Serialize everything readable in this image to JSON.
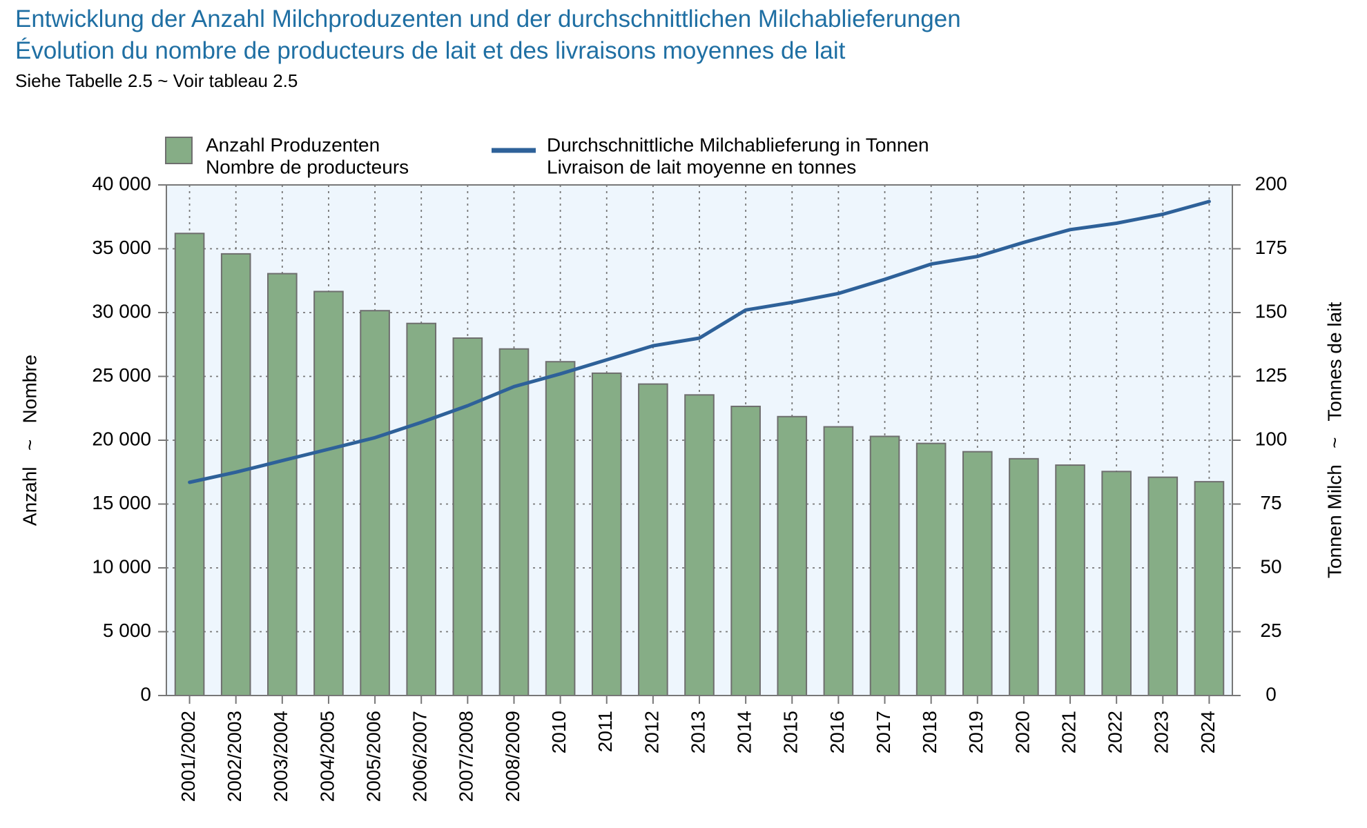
{
  "header": {
    "title_de": "Entwicklung der Anzahl Milchproduzenten und der durchschnittlichen Milchablieferungen",
    "title_fr": "Évolution du nombre de producteurs de lait et des livraisons moyennes de lait",
    "subtitle": "Siehe Tabelle 2.5   ~   Voir tableau 2.5"
  },
  "chart_data": {
    "type": "bar",
    "categories": [
      "2001/2002",
      "2002/2003",
      "2003/2004",
      "2004/2005",
      "2005/2006",
      "2006/2007",
      "2007/2008",
      "2008/2009",
      "2010",
      "2011",
      "2012",
      "2013",
      "2014",
      "2015",
      "2016",
      "2017",
      "2018",
      "2019",
      "2020",
      "2021",
      "2022",
      "2023",
      "2024"
    ],
    "series": [
      {
        "name_de": "Anzahl Produzenten",
        "name_fr": "Nombre de producteurs",
        "type": "bar",
        "axis": "left",
        "color": "#86ad86",
        "values": [
          36200,
          34600,
          33050,
          31650,
          30150,
          29150,
          28000,
          27150,
          26150,
          25250,
          24400,
          23550,
          22650,
          21850,
          21050,
          20300,
          19750,
          19100,
          18550,
          18050,
          17550,
          17100,
          16750
        ]
      },
      {
        "name_de": "Durchschnittliche Milchablieferung in Tonnen",
        "name_fr": "Livraison de lait moyenne en tonnes",
        "type": "line",
        "axis": "right",
        "color": "#2e6199",
        "values": [
          83.5,
          87.5,
          92,
          96.5,
          101,
          107,
          113.5,
          121,
          126,
          131.5,
          137,
          140,
          151,
          154,
          157.5,
          163,
          169,
          172,
          177.5,
          182.5,
          185,
          188.5,
          193.5
        ]
      }
    ],
    "y_left": {
      "label": "Anzahl   ~   Nombre",
      "ylim": [
        0,
        40000
      ],
      "ticks": [
        0,
        5000,
        10000,
        15000,
        20000,
        25000,
        30000,
        35000,
        40000
      ],
      "tick_labels": [
        "0",
        "5 000",
        "10 000",
        "15 000",
        "20 000",
        "25 000",
        "30 000",
        "35 000",
        "40 000"
      ]
    },
    "y_right": {
      "label": "Tonnen Milch   ~   Tonnes de lait",
      "ylim": [
        0,
        200
      ],
      "ticks": [
        0,
        25,
        50,
        75,
        100,
        125,
        150,
        175,
        200
      ],
      "tick_labels": [
        "0",
        "25",
        "50",
        "75",
        "100",
        "125",
        "150",
        "175",
        "200"
      ]
    },
    "grid": true,
    "legend_position": "top",
    "colors": {
      "plot_background": "#eef6fd",
      "bar_stroke": "#6e6e6e",
      "grid": "#777777"
    }
  }
}
